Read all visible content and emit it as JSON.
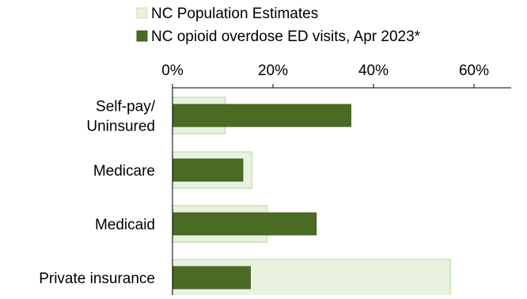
{
  "chart_data": {
    "type": "bar",
    "orientation": "horizontal",
    "title": "",
    "xlabel": "",
    "ylabel": "",
    "categories": [
      "Self-pay/\nUninsured",
      "Medicare",
      "Medicaid",
      "Private insurance"
    ],
    "series": [
      {
        "name": "NC Population Estimates",
        "values": [
          10.5,
          15.8,
          18.8,
          55.3
        ],
        "fill": "#e8f2df",
        "stroke": "#c9e0b6"
      },
      {
        "name": "NC opioid overdose ED visits, Apr 2023*",
        "values": [
          35.5,
          14.0,
          28.6,
          15.5
        ],
        "fill": "#4a6b24",
        "stroke": "#3f5c1f"
      }
    ],
    "xlim": [
      0,
      70
    ],
    "xticks": [
      0,
      20,
      40,
      60
    ],
    "xtick_labels": [
      "0%",
      "20%",
      "40%",
      "60%"
    ],
    "x_axis_position": "top",
    "grid": false,
    "legend_position": "top"
  }
}
